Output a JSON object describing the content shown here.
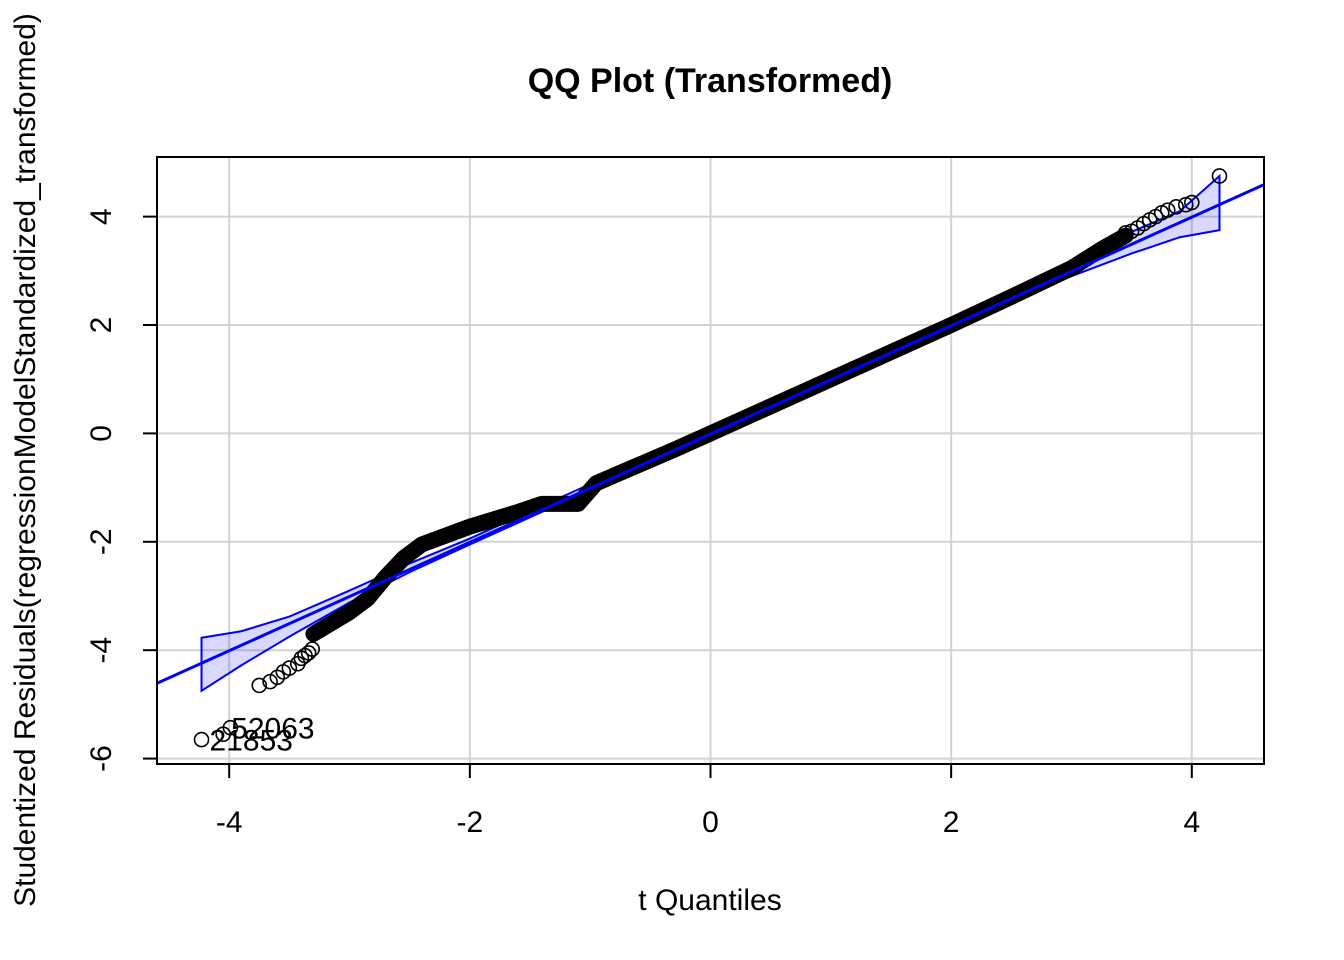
{
  "chart_data": {
    "type": "scatter",
    "title": "QQ Plot (Transformed)",
    "xlabel": "t Quantiles",
    "ylabel": "Studentized Residuals(regressionModelStandardized_transformed)",
    "xlim": [
      -4.6,
      4.6
    ],
    "ylim": [
      -6.1,
      5.1
    ],
    "xticks": [
      -4,
      -2,
      0,
      2,
      4
    ],
    "yticks": [
      -6,
      -4,
      -2,
      0,
      2,
      4
    ],
    "grid": true,
    "colors": {
      "points": "#000000",
      "line": "#0000ff",
      "band": "#0000ff"
    },
    "reference_line": {
      "intercept": -0.01,
      "slope": 1.0
    },
    "envelope": {
      "x": [
        -4.23,
        -3.9,
        -3.5,
        -3.0,
        -2.5,
        -2.0,
        2.0,
        2.5,
        3.0,
        3.5,
        3.9,
        4.23
      ],
      "lower": [
        -4.75,
        -4.28,
        -3.75,
        -3.12,
        -2.56,
        -2.05,
        1.97,
        2.44,
        2.9,
        3.32,
        3.62,
        3.75
      ],
      "upper": [
        -3.77,
        -3.65,
        -3.38,
        -2.9,
        -2.4,
        -1.94,
        2.08,
        2.6,
        3.15,
        3.72,
        4.1,
        4.75
      ]
    },
    "points_extreme_low": [
      {
        "x": -4.23,
        "y": -5.65
      },
      {
        "x": -4.05,
        "y": -5.55
      },
      {
        "x": -3.99,
        "y": -5.43
      },
      {
        "x": -3.75,
        "y": -4.65
      },
      {
        "x": -3.66,
        "y": -4.58
      },
      {
        "x": -3.6,
        "y": -4.5
      },
      {
        "x": -3.55,
        "y": -4.4
      },
      {
        "x": -3.5,
        "y": -4.33
      },
      {
        "x": -3.43,
        "y": -4.25
      },
      {
        "x": -3.4,
        "y": -4.15
      },
      {
        "x": -3.37,
        "y": -4.1
      },
      {
        "x": -3.34,
        "y": -4.05
      },
      {
        "x": -3.31,
        "y": -3.98
      }
    ],
    "points_extreme_high": [
      {
        "x": 3.45,
        "y": 3.7
      },
      {
        "x": 3.5,
        "y": 3.73
      },
      {
        "x": 3.55,
        "y": 3.79
      },
      {
        "x": 3.6,
        "y": 3.87
      },
      {
        "x": 3.65,
        "y": 3.94
      },
      {
        "x": 3.7,
        "y": 4.0
      },
      {
        "x": 3.75,
        "y": 4.07
      },
      {
        "x": 3.8,
        "y": 4.12
      },
      {
        "x": 3.87,
        "y": 4.18
      },
      {
        "x": 3.95,
        "y": 4.22
      },
      {
        "x": 4.0,
        "y": 4.26
      },
      {
        "x": 4.23,
        "y": 4.75
      }
    ],
    "dense_curve": [
      {
        "x": -3.3,
        "y": -3.7
      },
      {
        "x": -3.0,
        "y": -3.3
      },
      {
        "x": -2.85,
        "y": -3.05
      },
      {
        "x": -2.7,
        "y": -2.65
      },
      {
        "x": -2.55,
        "y": -2.3
      },
      {
        "x": -2.4,
        "y": -2.05
      },
      {
        "x": -2.0,
        "y": -1.72
      },
      {
        "x": -1.6,
        "y": -1.45
      },
      {
        "x": -1.4,
        "y": -1.3
      },
      {
        "x": -1.1,
        "y": -1.3
      },
      {
        "x": -0.95,
        "y": -0.92
      },
      {
        "x": -0.7,
        "y": -0.68
      },
      {
        "x": -0.3,
        "y": -0.3
      },
      {
        "x": 0.0,
        "y": 0.0
      },
      {
        "x": 0.5,
        "y": 0.5
      },
      {
        "x": 1.0,
        "y": 1.0
      },
      {
        "x": 1.5,
        "y": 1.5
      },
      {
        "x": 2.0,
        "y": 2.0
      },
      {
        "x": 2.5,
        "y": 2.52
      },
      {
        "x": 3.0,
        "y": 3.05
      },
      {
        "x": 3.25,
        "y": 3.4
      },
      {
        "x": 3.45,
        "y": 3.65
      }
    ],
    "annotations": [
      {
        "text": "52063",
        "x": -4.05,
        "y": -5.43
      },
      {
        "text": "21853",
        "x": -4.23,
        "y": -5.65
      }
    ]
  }
}
